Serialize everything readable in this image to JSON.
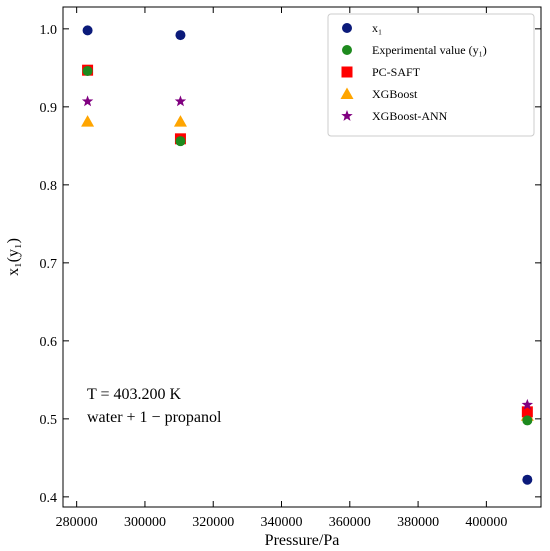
{
  "chart_data": {
    "type": "scatter",
    "xlabel": "Pressure/Pa",
    "ylabel": "x₁(y₁)",
    "xlim": [
      276000,
      416000
    ],
    "ylim": [
      0.387,
      1.028
    ],
    "xticks": [
      280000,
      300000,
      320000,
      340000,
      360000,
      380000,
      400000
    ],
    "yticks": [
      0.4,
      0.5,
      0.6,
      0.7,
      0.8,
      0.9,
      1.0
    ],
    "xtick_labels": [
      "280000",
      "300000",
      "320000",
      "340000",
      "360000",
      "380000",
      "400000"
    ],
    "ytick_labels": [
      "0.4",
      "0.5",
      "0.6",
      "0.7",
      "0.8",
      "0.9",
      "1.0"
    ],
    "grid": false,
    "legend_position": "top-right",
    "series": [
      {
        "name": "x₁",
        "marker": "circle",
        "color": "#0b1a7a",
        "x": [
          283200,
          310400,
          412000
        ],
        "y": [
          0.998,
          0.992,
          0.422
        ]
      },
      {
        "name": "Experimental value (y₁)",
        "marker": "circle",
        "color": "#1e8a1e",
        "x": [
          283200,
          310400,
          412000
        ],
        "y": [
          0.946,
          0.856,
          0.498
        ]
      },
      {
        "name": "PC-SAFT",
        "marker": "square",
        "color": "#ff0000",
        "x": [
          283200,
          310400,
          412000
        ],
        "y": [
          0.947,
          0.859,
          0.509
        ]
      },
      {
        "name": "XGBoost",
        "marker": "triangle",
        "color": "#ffa500",
        "x": [
          283200,
          310400,
          412000
        ],
        "y": [
          0.881,
          0.881,
          0.504
        ]
      },
      {
        "name": "XGBoost-ANN",
        "marker": "star",
        "color": "#800080",
        "x": [
          283200,
          310400,
          412000
        ],
        "y": [
          0.907,
          0.907,
          0.518
        ]
      }
    ],
    "annotations": [
      {
        "text": "T = 403.200 K"
      },
      {
        "text": "water + 1 − propanol"
      }
    ]
  }
}
